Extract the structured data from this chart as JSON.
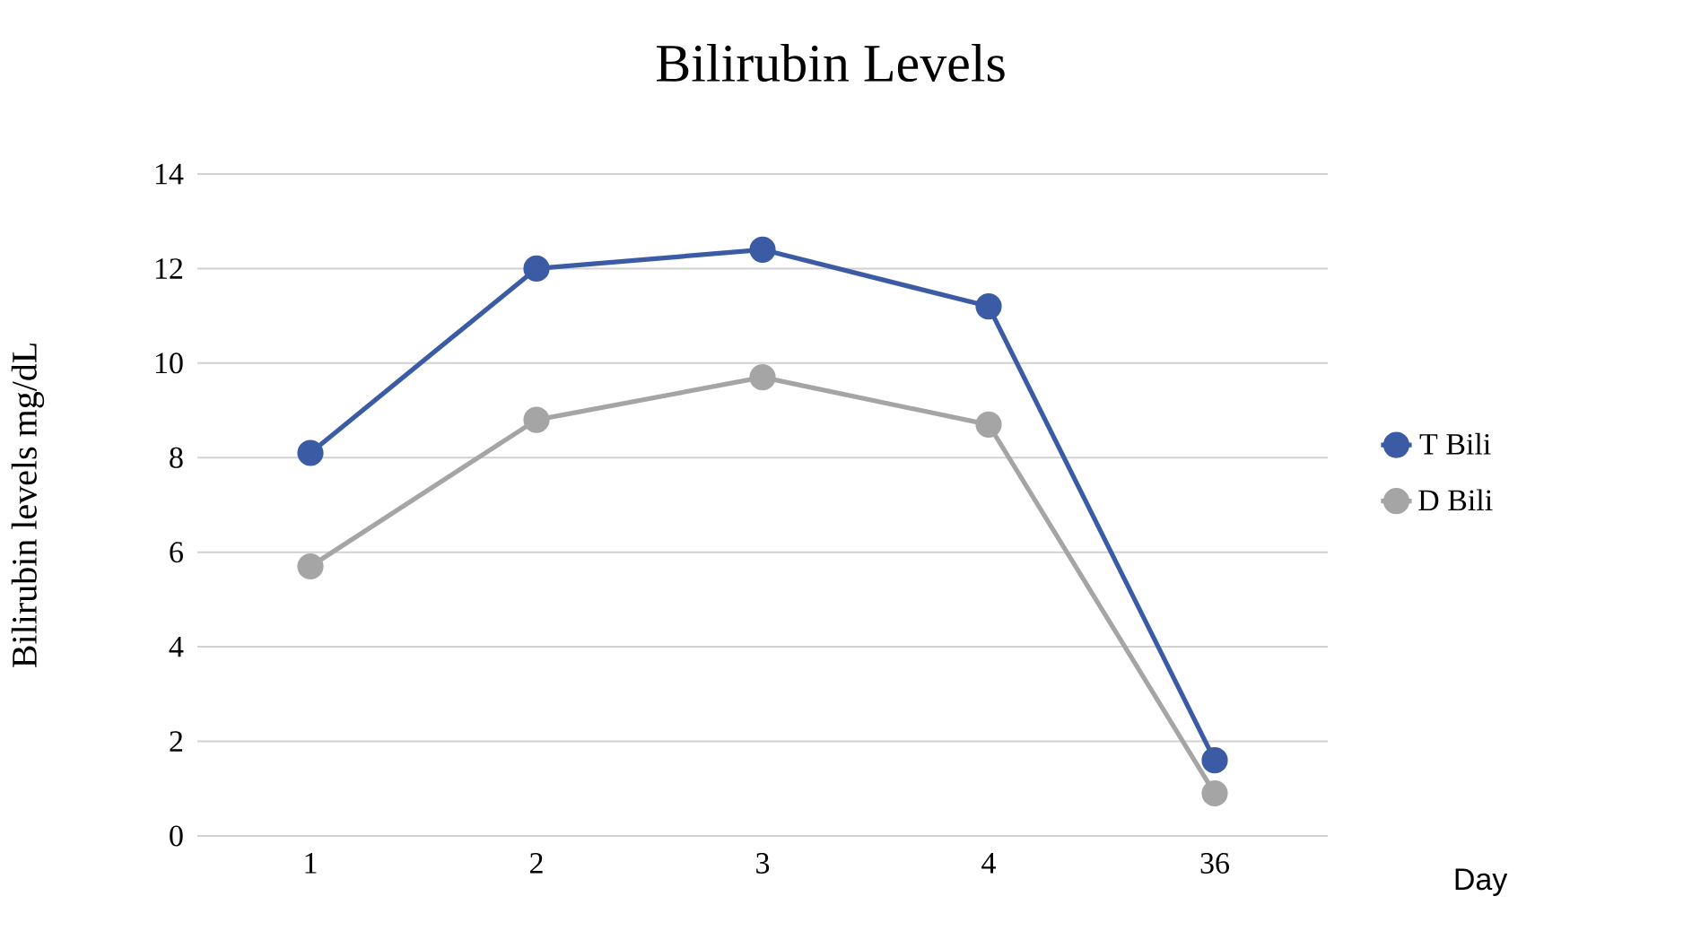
{
  "chart_data": {
    "type": "line",
    "title": "Bilirubin Levels",
    "xlabel": "Day",
    "ylabel": "Bilirubin levels mg/dL",
    "categories": [
      "1",
      "2",
      "3",
      "4",
      "36"
    ],
    "series": [
      {
        "name": "T Bili",
        "color": "#3b5ba5",
        "values": [
          8.1,
          12.0,
          12.4,
          11.2,
          1.6
        ]
      },
      {
        "name": "D Bili",
        "color": "#a5a5a5",
        "values": [
          5.7,
          8.8,
          9.7,
          8.7,
          0.9
        ]
      }
    ],
    "ylim": [
      0,
      14
    ],
    "yticks": [
      0,
      2,
      4,
      6,
      8,
      10,
      12,
      14
    ],
    "grid": "y",
    "legend": "right",
    "marker": "circle",
    "line_style": "solid"
  }
}
